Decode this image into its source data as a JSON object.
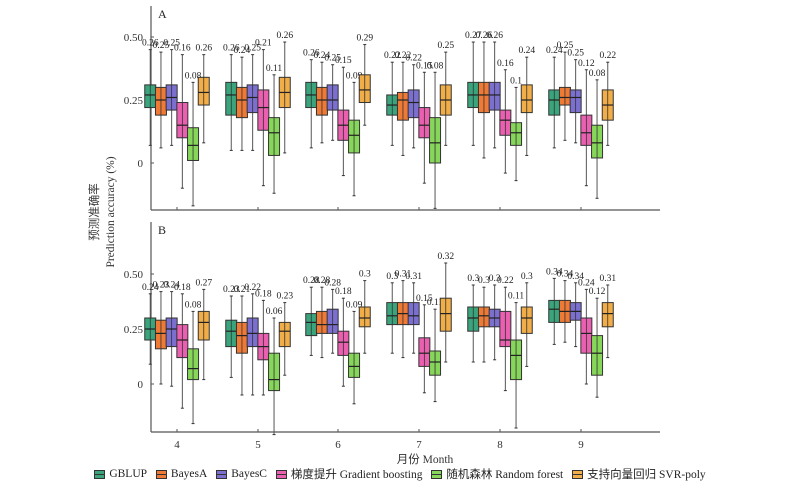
{
  "chart_data": {
    "type": "boxplot",
    "ylabel_cn": "预测准确率",
    "ylabel_en": "Prediction accuracy (%)",
    "xlabel": "月份 Month",
    "categories": [
      "4",
      "5",
      "6",
      "7",
      "8",
      "9"
    ],
    "yticks": [
      "0",
      "0.25",
      "0.50"
    ],
    "ytick_values": [
      0,
      0.25,
      0.5
    ],
    "legend_position": "bottom",
    "series_meta": [
      {
        "name": "GBLUP",
        "color": "#3aa57d"
      },
      {
        "name": "BayesA",
        "color": "#ee7a35"
      },
      {
        "name": "BayesC",
        "color": "#7b6fcf"
      },
      {
        "name": "梯度提升 Gradient boosting",
        "color": "#ea5fb0"
      },
      {
        "name": "随机森林 Random forest",
        "color": "#86d65a"
      },
      {
        "name": "支持向量回归 SVR-poly",
        "color": "#f1ad48"
      }
    ],
    "panels": [
      {
        "label": "A",
        "ylim": [
          -0.18,
          0.64
        ],
        "groups": [
          {
            "month": "4",
            "boxes": [
              {
                "mean": "0.26",
                "min": 0.07,
                "q1": 0.22,
                "median": 0.27,
                "q3": 0.31,
                "max": 0.45
              },
              {
                "mean": "0.25",
                "min": 0.06,
                "q1": 0.19,
                "median": 0.25,
                "q3": 0.3,
                "max": 0.44
              },
              {
                "mean": "0.25",
                "min": 0.07,
                "q1": 0.21,
                "median": 0.26,
                "q3": 0.31,
                "max": 0.45
              },
              {
                "mean": "0.16",
                "min": -0.1,
                "q1": 0.1,
                "median": 0.15,
                "q3": 0.24,
                "max": 0.43
              },
              {
                "mean": "0.08",
                "min": -0.17,
                "q1": 0.01,
                "median": 0.07,
                "q3": 0.14,
                "max": 0.32
              },
              {
                "mean": "0.26",
                "min": 0.08,
                "q1": 0.23,
                "median": 0.28,
                "q3": 0.34,
                "max": 0.43
              }
            ]
          },
          {
            "month": "5",
            "boxes": [
              {
                "mean": "0.26",
                "min": 0.05,
                "q1": 0.19,
                "median": 0.27,
                "q3": 0.32,
                "max": 0.43
              },
              {
                "mean": "0.24",
                "min": 0.05,
                "q1": 0.18,
                "median": 0.25,
                "q3": 0.3,
                "max": 0.42
              },
              {
                "mean": "0.25",
                "min": 0.05,
                "q1": 0.2,
                "median": 0.26,
                "q3": 0.31,
                "max": 0.43
              },
              {
                "mean": "0.21",
                "min": -0.09,
                "q1": 0.13,
                "median": 0.22,
                "q3": 0.29,
                "max": 0.45
              },
              {
                "mean": "0.11",
                "min": -0.12,
                "q1": 0.03,
                "median": 0.12,
                "q3": 0.18,
                "max": 0.35
              },
              {
                "mean": "0.26",
                "min": 0.04,
                "q1": 0.22,
                "median": 0.28,
                "q3": 0.34,
                "max": 0.48
              }
            ]
          },
          {
            "month": "6",
            "boxes": [
              {
                "mean": "0.26",
                "min": 0.06,
                "q1": 0.22,
                "median": 0.27,
                "q3": 0.32,
                "max": 0.41
              },
              {
                "mean": "0.24",
                "min": 0.08,
                "q1": 0.19,
                "median": 0.25,
                "q3": 0.3,
                "max": 0.4
              },
              {
                "mean": "0.25",
                "min": 0.09,
                "q1": 0.21,
                "median": 0.25,
                "q3": 0.31,
                "max": 0.39
              },
              {
                "mean": "0.15",
                "min": -0.05,
                "q1": 0.09,
                "median": 0.15,
                "q3": 0.21,
                "max": 0.38
              },
              {
                "mean": "0.09",
                "min": -0.13,
                "q1": 0.04,
                "median": 0.11,
                "q3": 0.17,
                "max": 0.32
              },
              {
                "mean": "0.29",
                "min": 0.15,
                "q1": 0.24,
                "median": 0.29,
                "q3": 0.35,
                "max": 0.47
              }
            ]
          },
          {
            "month": "7",
            "boxes": [
              {
                "mean": "0.22",
                "min": 0.07,
                "q1": 0.19,
                "median": 0.23,
                "q3": 0.27,
                "max": 0.4
              },
              {
                "mean": "0.22",
                "min": 0.03,
                "q1": 0.17,
                "median": 0.25,
                "q3": 0.28,
                "max": 0.4
              },
              {
                "mean": "0.22",
                "min": 0.06,
                "q1": 0.18,
                "median": 0.24,
                "q3": 0.29,
                "max": 0.39
              },
              {
                "mean": "0.15",
                "min": -0.08,
                "q1": 0.1,
                "median": 0.15,
                "q3": 0.22,
                "max": 0.36
              },
              {
                "mean": "0.08",
                "min": -0.18,
                "q1": 0.0,
                "median": 0.08,
                "q3": 0.18,
                "max": 0.36
              },
              {
                "mean": "0.25",
                "min": 0.07,
                "q1": 0.19,
                "median": 0.25,
                "q3": 0.31,
                "max": 0.44
              }
            ]
          },
          {
            "month": "8",
            "boxes": [
              {
                "mean": "0.27",
                "min": 0.07,
                "q1": 0.22,
                "median": 0.27,
                "q3": 0.32,
                "max": 0.48
              },
              {
                "mean": "0.26",
                "min": 0.02,
                "q1": 0.2,
                "median": 0.27,
                "q3": 0.32,
                "max": 0.48
              },
              {
                "mean": "0.26",
                "min": 0.06,
                "q1": 0.21,
                "median": 0.27,
                "q3": 0.32,
                "max": 0.48
              },
              {
                "mean": "0.16",
                "min": -0.04,
                "q1": 0.11,
                "median": 0.17,
                "q3": 0.21,
                "max": 0.37
              },
              {
                "mean": "0.1",
                "min": -0.07,
                "q1": 0.07,
                "median": 0.12,
                "q3": 0.16,
                "max": 0.3
              },
              {
                "mean": "0.24",
                "min": 0.03,
                "q1": 0.2,
                "median": 0.25,
                "q3": 0.31,
                "max": 0.42
              }
            ]
          },
          {
            "month": "9",
            "boxes": [
              {
                "mean": "0.24",
                "min": 0.06,
                "q1": 0.19,
                "median": 0.25,
                "q3": 0.29,
                "max": 0.42
              },
              {
                "mean": "0.25",
                "min": 0.09,
                "q1": 0.23,
                "median": 0.26,
                "q3": 0.3,
                "max": 0.44
              },
              {
                "mean": "0.25",
                "min": 0.08,
                "q1": 0.2,
                "median": 0.26,
                "q3": 0.29,
                "max": 0.41
              },
              {
                "mean": "0.12",
                "min": -0.09,
                "q1": 0.07,
                "median": 0.12,
                "q3": 0.19,
                "max": 0.37
              },
              {
                "mean": "0.08",
                "min": -0.14,
                "q1": 0.02,
                "median": 0.08,
                "q3": 0.15,
                "max": 0.33
              },
              {
                "mean": "0.22",
                "min": 0.07,
                "q1": 0.17,
                "median": 0.23,
                "q3": 0.29,
                "max": 0.4
              }
            ]
          }
        ]
      },
      {
        "label": "B",
        "ylim": [
          -0.23,
          0.73
        ],
        "groups": [
          {
            "month": "4",
            "boxes": [
              {
                "mean": "0.24",
                "min": 0.09,
                "q1": 0.2,
                "median": 0.25,
                "q3": 0.3,
                "max": 0.41
              },
              {
                "mean": "0.23",
                "min": 0.0,
                "q1": 0.16,
                "median": 0.23,
                "q3": 0.29,
                "max": 0.42
              },
              {
                "mean": "0.24",
                "min": -0.01,
                "q1": 0.17,
                "median": 0.25,
                "q3": 0.3,
                "max": 0.42
              },
              {
                "mean": "0.18",
                "min": -0.11,
                "q1": 0.12,
                "median": 0.2,
                "q3": 0.27,
                "max": 0.41
              },
              {
                "mean": "0.08",
                "min": -0.18,
                "q1": 0.02,
                "median": 0.07,
                "q3": 0.16,
                "max": 0.33
              },
              {
                "mean": "0.27",
                "min": 0.02,
                "q1": 0.2,
                "median": 0.28,
                "q3": 0.33,
                "max": 0.43
              }
            ]
          },
          {
            "month": "5",
            "boxes": [
              {
                "mean": "0.23",
                "min": 0.03,
                "q1": 0.17,
                "median": 0.24,
                "q3": 0.29,
                "max": 0.4
              },
              {
                "mean": "0.21",
                "min": -0.05,
                "q1": 0.14,
                "median": 0.22,
                "q3": 0.28,
                "max": 0.4
              },
              {
                "mean": "0.22",
                "min": -0.05,
                "q1": 0.17,
                "median": 0.23,
                "q3": 0.3,
                "max": 0.41
              },
              {
                "mean": "0.18",
                "min": -0.05,
                "q1": 0.11,
                "median": 0.17,
                "q3": 0.23,
                "max": 0.38
              },
              {
                "mean": "0.06",
                "min": -0.23,
                "q1": -0.03,
                "median": 0.02,
                "q3": 0.14,
                "max": 0.3
              },
              {
                "mean": "0.23",
                "min": 0.04,
                "q1": 0.17,
                "median": 0.24,
                "q3": 0.28,
                "max": 0.37
              }
            ]
          },
          {
            "month": "6",
            "boxes": [
              {
                "mean": "0.28",
                "min": 0.13,
                "q1": 0.22,
                "median": 0.28,
                "q3": 0.32,
                "max": 0.44
              },
              {
                "mean": "0.28",
                "min": 0.12,
                "q1": 0.23,
                "median": 0.27,
                "q3": 0.33,
                "max": 0.44
              },
              {
                "mean": "0.28",
                "min": 0.14,
                "q1": 0.23,
                "median": 0.27,
                "q3": 0.34,
                "max": 0.43
              },
              {
                "mean": "0.18",
                "min": -0.01,
                "q1": 0.13,
                "median": 0.19,
                "q3": 0.24,
                "max": 0.39
              },
              {
                "mean": "0.09",
                "min": -0.09,
                "q1": 0.03,
                "median": 0.08,
                "q3": 0.14,
                "max": 0.33
              },
              {
                "mean": "0.3",
                "min": 0.14,
                "q1": 0.26,
                "median": 0.3,
                "q3": 0.35,
                "max": 0.47
              }
            ]
          },
          {
            "month": "7",
            "boxes": [
              {
                "mean": "0.3",
                "min": 0.14,
                "q1": 0.27,
                "median": 0.31,
                "q3": 0.37,
                "max": 0.46
              },
              {
                "mean": "0.31",
                "min": 0.12,
                "q1": 0.27,
                "median": 0.32,
                "q3": 0.37,
                "max": 0.47
              },
              {
                "mean": "0.31",
                "min": 0.14,
                "q1": 0.27,
                "median": 0.31,
                "q3": 0.37,
                "max": 0.46
              },
              {
                "mean": "0.15",
                "min": -0.04,
                "q1": 0.08,
                "median": 0.14,
                "q3": 0.21,
                "max": 0.36
              },
              {
                "mean": "0.11",
                "min": -0.08,
                "q1": 0.04,
                "median": 0.1,
                "q3": 0.15,
                "max": 0.34
              },
              {
                "mean": "0.32",
                "min": 0.1,
                "q1": 0.24,
                "median": 0.32,
                "q3": 0.39,
                "max": 0.55
              }
            ]
          },
          {
            "month": "8",
            "boxes": [
              {
                "mean": "0.3",
                "min": 0.1,
                "q1": 0.24,
                "median": 0.3,
                "q3": 0.35,
                "max": 0.45
              },
              {
                "mean": "0.3",
                "min": 0.1,
                "q1": 0.26,
                "median": 0.31,
                "q3": 0.35,
                "max": 0.44
              },
              {
                "mean": "0.3",
                "min": 0.11,
                "q1": 0.26,
                "median": 0.3,
                "q3": 0.34,
                "max": 0.45
              },
              {
                "mean": "0.22",
                "min": -0.03,
                "q1": 0.17,
                "median": 0.2,
                "q3": 0.33,
                "max": 0.44
              },
              {
                "mean": "0.11",
                "min": -0.2,
                "q1": 0.02,
                "median": 0.13,
                "q3": 0.2,
                "max": 0.37
              },
              {
                "mean": "0.3",
                "min": 0.08,
                "q1": 0.23,
                "median": 0.3,
                "q3": 0.35,
                "max": 0.46
              }
            ]
          },
          {
            "month": "9",
            "boxes": [
              {
                "mean": "0.34",
                "min": 0.18,
                "q1": 0.28,
                "median": 0.34,
                "q3": 0.38,
                "max": 0.48
              },
              {
                "mean": "0.34",
                "min": 0.19,
                "q1": 0.28,
                "median": 0.33,
                "q3": 0.38,
                "max": 0.47
              },
              {
                "mean": "0.34",
                "min": 0.17,
                "q1": 0.29,
                "median": 0.33,
                "q3": 0.37,
                "max": 0.46
              },
              {
                "mean": "0.24",
                "min": 0.0,
                "q1": 0.14,
                "median": 0.23,
                "q3": 0.3,
                "max": 0.43
              },
              {
                "mean": "0.12",
                "min": -0.06,
                "q1": 0.04,
                "median": 0.14,
                "q3": 0.22,
                "max": 0.39
              },
              {
                "mean": "0.31",
                "min": 0.12,
                "q1": 0.26,
                "median": 0.32,
                "q3": 0.37,
                "max": 0.45
              }
            ]
          }
        ]
      }
    ]
  }
}
